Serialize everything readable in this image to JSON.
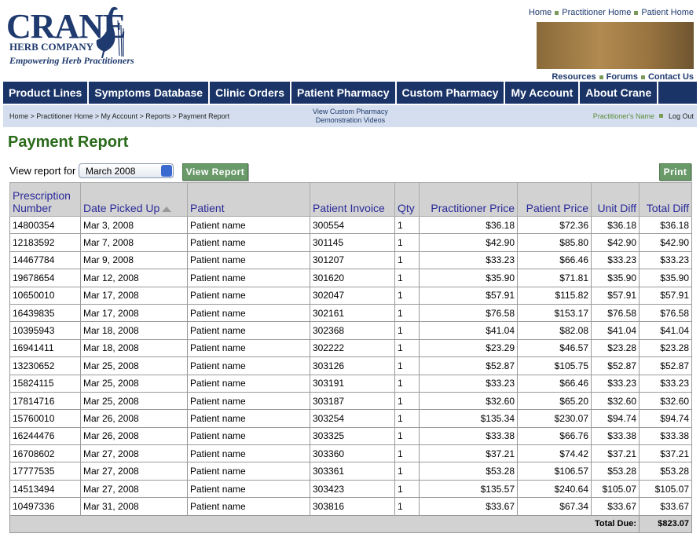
{
  "header": {
    "logo_name": "CRANE",
    "logo_sub": "HERB COMPANY",
    "tagline": "Empowering Herb Practitioners",
    "top_links": [
      "Home",
      "Practitioner Home",
      "Patient Home"
    ],
    "secondary_links": [
      "Resources",
      "Forums",
      "Contact Us"
    ]
  },
  "nav": [
    "Product Lines",
    "Symptoms Database",
    "Clinic Orders",
    "Patient Pharmacy",
    "Custom Pharmacy",
    "My Account",
    "About Crane"
  ],
  "subbar": {
    "breadcrumb": "Home > Practitioner Home > My Account > Reports > Payment Report",
    "center_link": [
      "View Custom Pharmacy",
      "Demonstration Videos"
    ],
    "user_name": "Practitioner's Name",
    "logout": "Log Out"
  },
  "title": "Payment Report",
  "controls": {
    "label": "View report for",
    "month": "March 2008",
    "view_button": "View Report",
    "print_button": "Print"
  },
  "table": {
    "columns": [
      "Prescription Number",
      "Date Picked Up",
      "Patient",
      "Patient Invoice",
      "Qty",
      "Practitioner Price",
      "Patient Price",
      "Unit Diff",
      "Total Diff"
    ],
    "rows": [
      [
        "14800354",
        "Mar 3, 2008",
        "Patient name",
        "300554",
        "1",
        "$36.18",
        "$72.36",
        "$36.18",
        "$36.18"
      ],
      [
        "12183592",
        "Mar 7, 2008",
        "Patient name",
        "301145",
        "1",
        "$42.90",
        "$85.80",
        "$42.90",
        "$42.90"
      ],
      [
        "14467784",
        "Mar 9, 2008",
        "Patient name",
        "301207",
        "1",
        "$33.23",
        "$66.46",
        "$33.23",
        "$33.23"
      ],
      [
        "19678654",
        "Mar 12, 2008",
        "Patient name",
        "301620",
        "1",
        "$35.90",
        "$71.81",
        "$35.90",
        "$35.90"
      ],
      [
        "10650010",
        "Mar 17, 2008",
        "Patient name",
        "302047",
        "1",
        "$57.91",
        "$115.82",
        "$57.91",
        "$57.91"
      ],
      [
        "16439835",
        "Mar 17, 2008",
        "Patient name",
        "302161",
        "1",
        "$76.58",
        "$153.17",
        "$76.58",
        "$76.58"
      ],
      [
        "10395943",
        "Mar 18, 2008",
        "Patient name",
        "302368",
        "1",
        "$41.04",
        "$82.08",
        "$41.04",
        "$41.04"
      ],
      [
        "16941411",
        "Mar 18, 2008",
        "Patient name",
        "302222",
        "1",
        "$23.29",
        "$46.57",
        "$23.28",
        "$23.28"
      ],
      [
        "13230652",
        "Mar 25, 2008",
        "Patient name",
        "303126",
        "1",
        "$52.87",
        "$105.75",
        "$52.87",
        "$52.87"
      ],
      [
        "15824115",
        "Mar 25, 2008",
        "Patient name",
        "303191",
        "1",
        "$33.23",
        "$66.46",
        "$33.23",
        "$33.23"
      ],
      [
        "17814716",
        "Mar 25, 2008",
        "Patient name",
        "303187",
        "1",
        "$32.60",
        "$65.20",
        "$32.60",
        "$32.60"
      ],
      [
        "15760010",
        "Mar 26, 2008",
        "Patient name",
        "303254",
        "1",
        "$135.34",
        "$230.07",
        "$94.74",
        "$94.74"
      ],
      [
        "16244476",
        "Mar 26, 2008",
        "Patient name",
        "303325",
        "1",
        "$33.38",
        "$66.76",
        "$33.38",
        "$33.38"
      ],
      [
        "16708602",
        "Mar 27, 2008",
        "Patient name",
        "303360",
        "1",
        "$37.21",
        "$74.42",
        "$37.21",
        "$37.21"
      ],
      [
        "17777535",
        "Mar 27, 2008",
        "Patient name",
        "303361",
        "1",
        "$53.28",
        "$106.57",
        "$53.28",
        "$53.28"
      ],
      [
        "14513494",
        "Mar 27, 2008",
        "Patient name",
        "303423",
        "1",
        "$135.57",
        "$240.64",
        "$105.07",
        "$105.07"
      ],
      [
        "10497336",
        "Mar 31, 2008",
        "Patient name",
        "303816",
        "1",
        "$33.67",
        "$67.34",
        "$33.67",
        "$33.67"
      ]
    ],
    "total_label": "Total Due:",
    "total_value": "$823.07"
  }
}
